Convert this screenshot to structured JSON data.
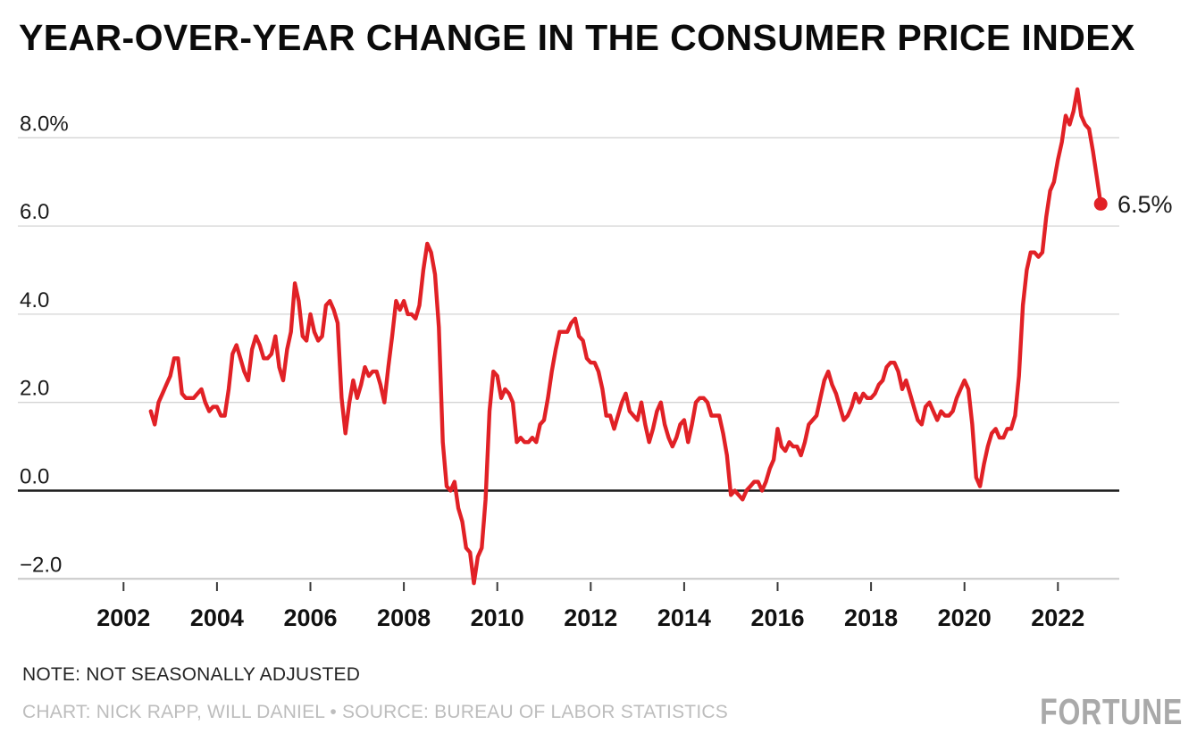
{
  "header": {
    "title": "YEAR-OVER-YEAR CHANGE IN THE CONSUMER PRICE INDEX"
  },
  "footer": {
    "note": "NOTE: NOT SEASONALLY ADJUSTED",
    "credit": "CHART: NICK RAPP, WILL DANIEL • SOURCE: BUREAU OF LABOR STATISTICS",
    "brand": "FORTUNE"
  },
  "chart_data": {
    "type": "line",
    "title": "YEAR-OVER-YEAR CHANGE IN THE CONSUMER PRICE INDEX",
    "series_name": "CPI year-over-year % change (not seasonally adjusted)",
    "frequency": "monthly",
    "start_year": 2002,
    "start_month": 8,
    "values": [
      1.8,
      1.5,
      2.0,
      2.2,
      2.4,
      2.6,
      3.0,
      3.0,
      2.2,
      2.1,
      2.1,
      2.1,
      2.2,
      2.3,
      2.0,
      1.8,
      1.9,
      1.9,
      1.7,
      1.7,
      2.3,
      3.1,
      3.3,
      3.0,
      2.7,
      2.5,
      3.2,
      3.5,
      3.3,
      3.0,
      3.0,
      3.1,
      3.5,
      2.8,
      2.5,
      3.2,
      3.6,
      4.7,
      4.3,
      3.5,
      3.4,
      4.0,
      3.6,
      3.4,
      3.5,
      4.2,
      4.3,
      4.1,
      3.8,
      2.1,
      1.3,
      2.0,
      2.5,
      2.1,
      2.4,
      2.8,
      2.6,
      2.7,
      2.7,
      2.4,
      2.0,
      2.8,
      3.5,
      4.3,
      4.1,
      4.3,
      4.0,
      4.0,
      3.9,
      4.2,
      5.0,
      5.6,
      5.4,
      4.9,
      3.7,
      1.1,
      0.1,
      0.0,
      0.2,
      -0.4,
      -0.7,
      -1.3,
      -1.4,
      -2.1,
      -1.5,
      -1.3,
      -0.2,
      1.8,
      2.7,
      2.6,
      2.1,
      2.3,
      2.2,
      2.0,
      1.1,
      1.2,
      1.1,
      1.1,
      1.2,
      1.1,
      1.5,
      1.6,
      2.1,
      2.7,
      3.2,
      3.6,
      3.6,
      3.6,
      3.8,
      3.9,
      3.5,
      3.4,
      3.0,
      2.9,
      2.9,
      2.7,
      2.3,
      1.7,
      1.7,
      1.4,
      1.7,
      2.0,
      2.2,
      1.8,
      1.7,
      1.6,
      2.0,
      1.5,
      1.1,
      1.4,
      1.8,
      2.0,
      1.5,
      1.2,
      1.0,
      1.2,
      1.5,
      1.6,
      1.1,
      1.5,
      2.0,
      2.1,
      2.1,
      2.0,
      1.7,
      1.7,
      1.7,
      1.3,
      0.8,
      -0.1,
      0.0,
      -0.1,
      -0.2,
      0.0,
      0.1,
      0.2,
      0.2,
      0.0,
      0.2,
      0.5,
      0.7,
      1.4,
      1.0,
      0.9,
      1.1,
      1.0,
      1.0,
      0.8,
      1.1,
      1.5,
      1.6,
      1.7,
      2.1,
      2.5,
      2.7,
      2.4,
      2.2,
      1.9,
      1.6,
      1.7,
      1.9,
      2.2,
      2.0,
      2.2,
      2.1,
      2.1,
      2.2,
      2.4,
      2.5,
      2.8,
      2.9,
      2.9,
      2.7,
      2.3,
      2.5,
      2.2,
      1.9,
      1.6,
      1.5,
      1.9,
      2.0,
      1.8,
      1.6,
      1.8,
      1.7,
      1.7,
      1.8,
      2.1,
      2.3,
      2.5,
      2.3,
      1.5,
      0.3,
      0.1,
      0.6,
      1.0,
      1.3,
      1.4,
      1.2,
      1.2,
      1.4,
      1.4,
      1.7,
      2.6,
      4.2,
      5.0,
      5.4,
      5.4,
      5.3,
      5.4,
      6.2,
      6.8,
      7.0,
      7.5,
      7.9,
      8.5,
      8.3,
      8.6,
      9.1,
      8.5,
      8.3,
      8.2,
      7.7,
      7.1,
      6.5
    ],
    "x_ticks": [
      2002,
      2004,
      2006,
      2008,
      2010,
      2012,
      2014,
      2016,
      2018,
      2020,
      2022
    ],
    "y_ticks": [
      {
        "value": 8,
        "label": "8.0%"
      },
      {
        "value": 6,
        "label": "6.0"
      },
      {
        "value": 4,
        "label": "4.0"
      },
      {
        "value": 2,
        "label": "2.0"
      },
      {
        "value": 0,
        "label": "0.0"
      },
      {
        "value": -2,
        "label": "−2.0"
      }
    ],
    "ylim": [
      -2.6,
      9.4
    ],
    "xlim": [
      2002,
      2023.3
    ],
    "grid": "horizontal",
    "legend": "none",
    "end_value": 6.5,
    "end_label": "6.5%",
    "colors": {
      "line": "#e12126",
      "grid": "#d4d4d4",
      "baseline_grid": "#c8c8c8",
      "zero_line": "#1a1a1a",
      "tick": "#3a3a3a",
      "axis_text": "#1a1a1a",
      "title_text": "#0b0b0b",
      "note_text": "#242424",
      "credit_text": "#bdbdbd",
      "brand_text": "#a9a9a9"
    }
  }
}
